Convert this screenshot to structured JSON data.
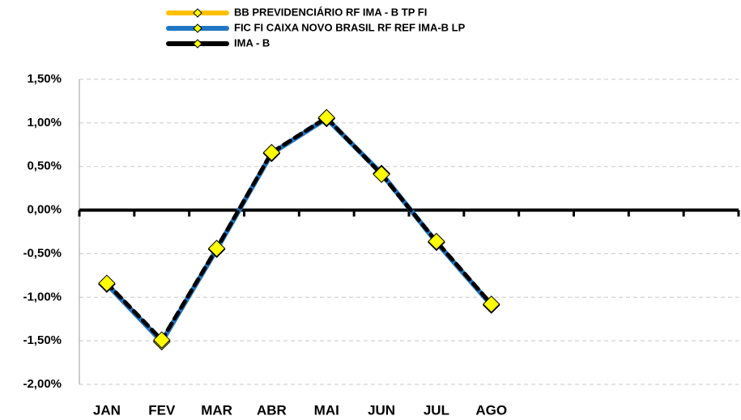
{
  "chart_data": {
    "type": "line",
    "categories": [
      "JAN",
      "FEV",
      "MAR",
      "ABR",
      "MAI",
      "JUN",
      "JUL",
      "AGO",
      null,
      null,
      null,
      null
    ],
    "series": [
      {
        "name": "BB PREVIDENCIÁRIO RF IMA - B TP FI",
        "color": "#ffc000",
        "values": [
          -0.85,
          -1.51,
          -0.45,
          0.65,
          1.05,
          0.42,
          -0.37,
          -1.09,
          null,
          null,
          null,
          null
        ]
      },
      {
        "name": "FIC FI CAIXA NOVO BRASIL RF REF IMA-B LP",
        "color": "#1f77c4",
        "values": [
          -0.85,
          -1.51,
          -0.45,
          0.65,
          1.05,
          0.42,
          -0.37,
          -1.09,
          null,
          null,
          null,
          null
        ]
      },
      {
        "name": "IMA - B",
        "color": "#000000",
        "values": [
          -0.84,
          -1.49,
          -0.44,
          0.66,
          1.06,
          0.41,
          -0.36,
          -1.08,
          null,
          null,
          null,
          null
        ]
      }
    ],
    "marker_color": "#ffff00",
    "ylim": [
      -2,
      1.5
    ],
    "yticks": [
      {
        "value": -2,
        "label": "-2,00%"
      },
      {
        "value": -1.5,
        "label": "-1,50%"
      },
      {
        "value": -1,
        "label": "-1,00%"
      },
      {
        "value": -0.5,
        "label": "-0,50%"
      },
      {
        "value": 0,
        "label": "0,00%"
      },
      {
        "value": 0.5,
        "label": "0,50%"
      },
      {
        "value": 1,
        "label": "1,00%"
      },
      {
        "value": 1.5,
        "label": "1,50%"
      }
    ],
    "grid": true
  }
}
